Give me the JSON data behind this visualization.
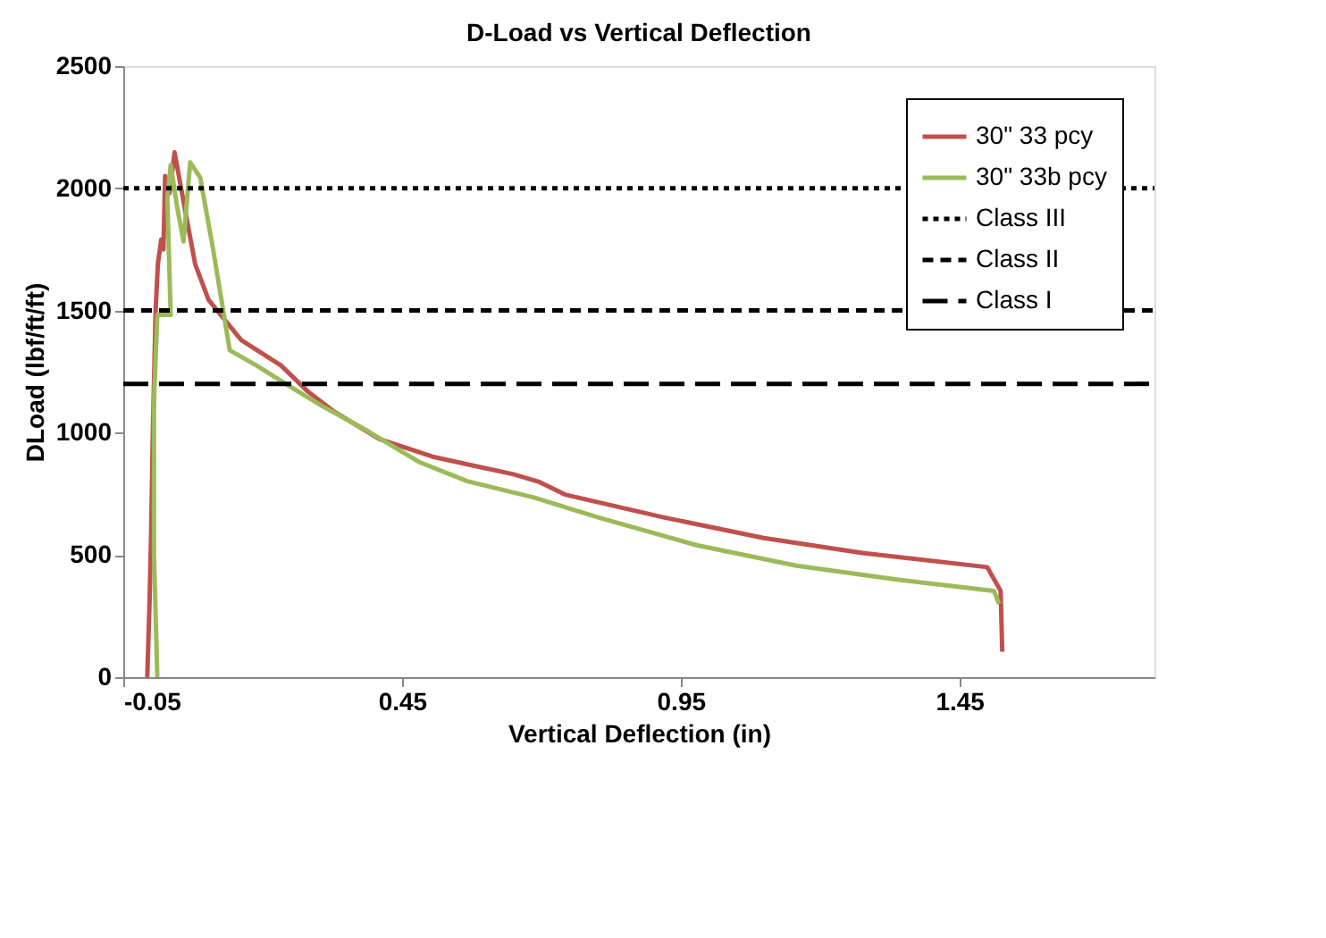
{
  "chart_data": {
    "type": "line",
    "title": "D-Load vs Vertical Deflection",
    "xlabel": "Vertical Deflection (in)",
    "ylabel": "DLoad (lbf/ft/ft)",
    "xlim": [
      -0.05,
      1.8
    ],
    "xticks": [
      -0.05,
      0.45,
      0.95,
      1.45
    ],
    "ylim": [
      0,
      2500
    ],
    "yticks": [
      0,
      500,
      1000,
      1500,
      2000,
      2500
    ],
    "grid": false,
    "legend": "top right",
    "line_style": "solid",
    "marker": "none",
    "series": [
      {
        "name": "30\" 33 pcy",
        "color": "#c0504d",
        "x": [
          -0.007,
          -0.003,
          0.0,
          0.003,
          0.008,
          0.012,
          0.018,
          0.022,
          0.025,
          0.033,
          0.042,
          0.062,
          0.079,
          0.103,
          0.162,
          0.233,
          0.28,
          0.327,
          0.41,
          0.505,
          0.567,
          0.65,
          0.697,
          0.744,
          0.921,
          1.099,
          1.276,
          1.5,
          1.524,
          1.527
        ],
        "values": [
          0,
          300,
          600,
          1000,
          1500,
          1690,
          1790,
          1750,
          2050,
          1980,
          2147,
          1897,
          1689,
          1544,
          1378,
          1275,
          1171,
          1088,
          974,
          902,
          871,
          830,
          798,
          746,
          653,
          569,
          508,
          450,
          353,
          104
        ]
      },
      {
        "name": "30\" 33b pcy",
        "color": "#9bbb59",
        "x": [
          0.011,
          0.005,
          0.005,
          0.011,
          0.035,
          0.029,
          0.035,
          0.047,
          0.058,
          0.07,
          0.088,
          0.111,
          0.129,
          0.141,
          0.189,
          0.247,
          0.307,
          0.39,
          0.48,
          0.567,
          0.685,
          0.803,
          0.98,
          1.158,
          1.335,
          1.512,
          1.521
        ],
        "values": [
          0,
          508,
          1130,
          1482,
          1482,
          1959,
          2095,
          1918,
          1783,
          2106,
          2044,
          1752,
          1503,
          1337,
          1275,
          1192,
          1109,
          1005,
          881,
          802,
          736,
          653,
          539,
          456,
          400,
          353,
          300
        ]
      }
    ],
    "ref_lines": [
      {
        "axis": "y",
        "value": 2000,
        "label": "Class III",
        "color": "#000000",
        "line_style": "dotted"
      },
      {
        "axis": "y",
        "value": 1500,
        "label": "Class II",
        "color": "#000000",
        "line_style": "dashed"
      },
      {
        "axis": "y",
        "value": 1200,
        "label": "Class I",
        "color": "#000000",
        "line_style": "longdash"
      }
    ]
  }
}
